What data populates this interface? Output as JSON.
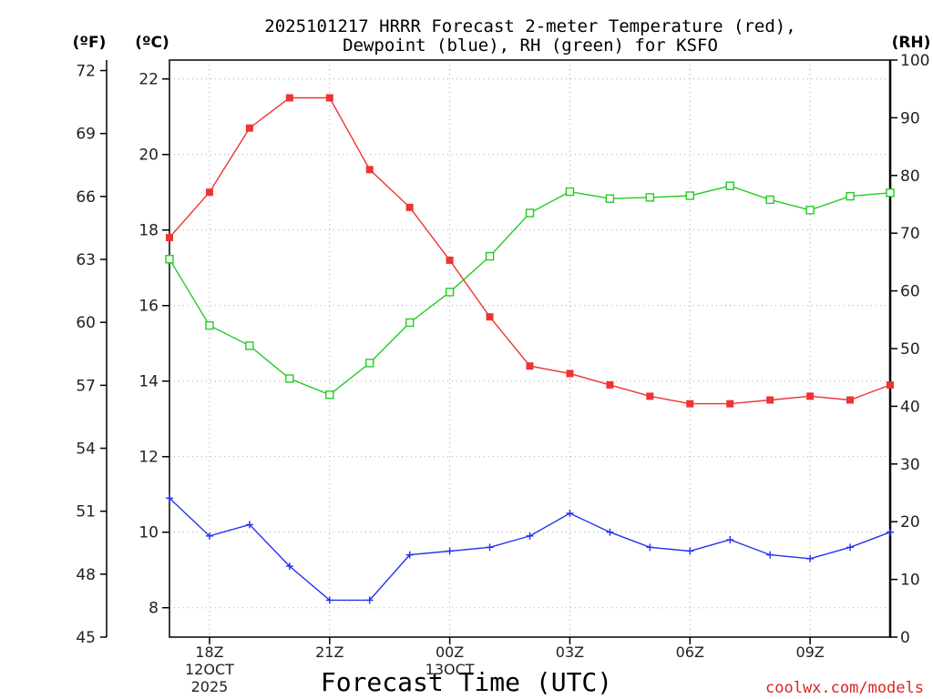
{
  "chart_data": {
    "type": "line",
    "title_line1": "2025101217 HRRR Forecast 2-meter Temperature (red),",
    "title_line2": "Dewpoint (blue), RH (green) for KSFO",
    "xlabel": "Forecast Time (UTC)",
    "credit": "coolwx.com/models",
    "colors": {
      "temperature": "#ee3333",
      "dewpoint": "#2233ee",
      "rh": "#22cc22",
      "credit": "#dd2222"
    },
    "x_range": [
      17,
      35
    ],
    "x_ticks": [
      {
        "x": 18,
        "label": "18Z",
        "sub1": "12OCT",
        "sub2": "2025"
      },
      {
        "x": 21,
        "label": "21Z",
        "sub1": "",
        "sub2": ""
      },
      {
        "x": 24,
        "label": "00Z",
        "sub1": "13OCT",
        "sub2": ""
      },
      {
        "x": 27,
        "label": "03Z",
        "sub1": "",
        "sub2": ""
      },
      {
        "x": 30,
        "label": "06Z",
        "sub1": "",
        "sub2": ""
      },
      {
        "x": 33,
        "label": "09Z",
        "sub1": "",
        "sub2": ""
      }
    ],
    "axes": {
      "fahrenheit": {
        "unit": "(ºF)",
        "range": [
          45,
          72.5
        ],
        "ticks": [
          "45",
          "48",
          "51",
          "54",
          "57",
          "60",
          "63",
          "66",
          "69",
          "72"
        ]
      },
      "celsius": {
        "unit": "(ºC)",
        "range": [
          7.2222,
          22.5
        ],
        "ticks": [
          "8",
          "10",
          "12",
          "14",
          "16",
          "18",
          "20",
          "22"
        ]
      },
      "rh": {
        "unit": "(RH)",
        "range": [
          0,
          100
        ],
        "ticks": [
          "0",
          "10",
          "20",
          "30",
          "40",
          "50",
          "60",
          "70",
          "80",
          "90",
          "100"
        ]
      }
    },
    "hours": [
      17,
      18,
      19,
      20,
      21,
      22,
      23,
      24,
      25,
      26,
      27,
      28,
      29,
      30,
      31,
      32,
      33,
      34,
      35
    ],
    "series": [
      {
        "name": "Temperature",
        "axis": "celsius",
        "marker": "filled-square",
        "values": [
          17.8,
          19.0,
          20.7,
          21.5,
          21.5,
          19.6,
          18.6,
          17.2,
          15.7,
          14.4,
          14.2,
          13.9,
          13.6,
          13.4,
          13.4,
          13.5,
          13.6,
          13.5,
          13.9
        ]
      },
      {
        "name": "Dewpoint",
        "axis": "celsius",
        "marker": "plus",
        "values": [
          10.9,
          9.9,
          10.2,
          9.1,
          8.2,
          8.2,
          9.4,
          9.5,
          9.6,
          9.9,
          10.5,
          10.0,
          9.6,
          9.5,
          9.8,
          9.4,
          9.3,
          9.6,
          10.0
        ]
      },
      {
        "name": "RH",
        "axis": "rh",
        "marker": "open-square",
        "values": [
          65.5,
          54.0,
          50.5,
          44.8,
          42.0,
          47.5,
          54.5,
          59.8,
          66.0,
          73.5,
          77.2,
          76.0,
          76.2,
          76.5,
          78.2,
          75.8,
          74.0,
          76.4,
          77.0
        ]
      }
    ]
  }
}
